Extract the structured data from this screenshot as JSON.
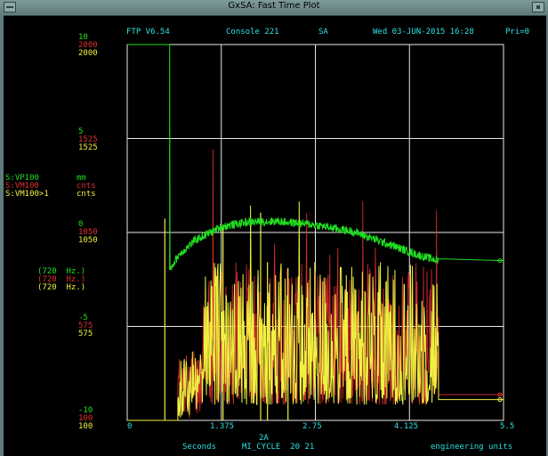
{
  "window": {
    "title": "GxSA: Fast Time Plot"
  },
  "header": {
    "version": "FTP V6.54",
    "console": "Console 221",
    "mode": "SA",
    "datetime": "Wed 03-JUN-2015 16:28",
    "priority": "Pri=0"
  },
  "y_axes": [
    {
      "tick": "10",
      "red": "2000",
      "yellow": "2000"
    },
    {
      "tick": "5",
      "red": "1525",
      "yellow": "1525"
    },
    {
      "tick": "0",
      "red": "1050",
      "yellow": "1050"
    },
    {
      "tick": "-5",
      "red": "575",
      "yellow": "575"
    },
    {
      "tick": "-10",
      "red": "100",
      "yellow": "100"
    }
  ],
  "devices": [
    {
      "name": "S:VP100",
      "unit": "mm",
      "color": "#20e020"
    },
    {
      "name": "S:VM100",
      "unit": "cnts",
      "color": "#e03030"
    },
    {
      "name": "S:VM100>1",
      "unit": "cnts",
      "color": "#f0f040"
    }
  ],
  "rates": [
    {
      "label": "(720  Hz.)",
      "color": "#20e020"
    },
    {
      "label": "(720  Hz.)",
      "color": "#e03030"
    },
    {
      "label": "(720  Hz.)",
      "color": "#f0f040"
    }
  ],
  "x_ticks": [
    "0",
    "1.375",
    "2.75",
    "4.125",
    "5.5"
  ],
  "footer": {
    "event": "2A",
    "x_unit": "Seconds",
    "cycle": "MI_CYCLE  20 21",
    "units_mode": "engineering units"
  },
  "chart_data": {
    "type": "line",
    "x_range": [
      0,
      5.5
    ],
    "x_label": "Seconds",
    "grid": true,
    "series": [
      {
        "name": "S:VP100",
        "color": "#20e020",
        "range": [
          -10,
          10
        ],
        "points": [
          [
            0,
            10
          ],
          [
            0.62,
            10
          ],
          [
            0.62,
            -2.0
          ],
          [
            0.75,
            -1.2
          ],
          [
            1.0,
            -0.4
          ],
          [
            1.375,
            0.3
          ],
          [
            1.75,
            0.55
          ],
          [
            2.2,
            0.6
          ],
          [
            2.75,
            0.4
          ],
          [
            3.3,
            0.05
          ],
          [
            3.8,
            -0.6
          ],
          [
            4.25,
            -1.2
          ],
          [
            4.55,
            -1.5
          ],
          [
            5.5,
            -1.5
          ]
        ]
      },
      {
        "name": "S:VM100",
        "color": "#e03030",
        "range": [
          100,
          2000
        ],
        "baseline": 100,
        "noise_band": [
          1.1,
          4.55
        ],
        "typical": [
          180,
          900
        ],
        "tail_value": 230
      },
      {
        "name": "S:VM100>1",
        "color": "#f0f040",
        "range": [
          100,
          2000
        ],
        "baseline": 100,
        "noise_band": [
          1.1,
          4.55
        ],
        "typical": [
          180,
          900
        ],
        "spikes": [
          [
            0.55,
            1120
          ],
          [
            1.4,
            1090
          ],
          [
            1.95,
            1150
          ],
          [
            2.05,
            900
          ],
          [
            2.35,
            870
          ]
        ],
        "tail_value": 205
      }
    ]
  }
}
